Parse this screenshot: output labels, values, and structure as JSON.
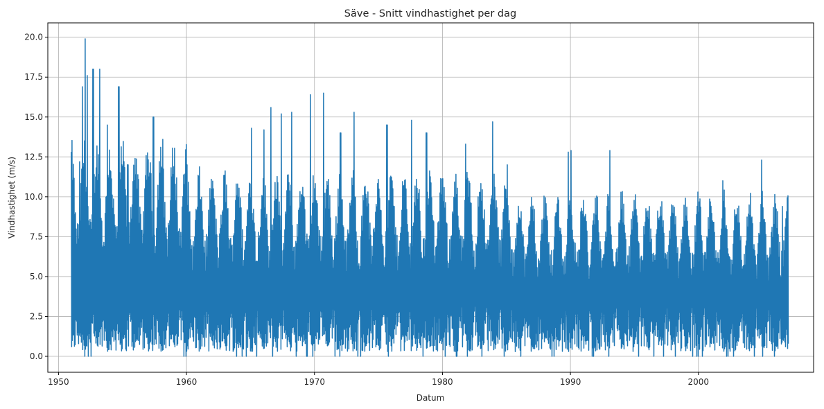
{
  "chart_data": {
    "type": "line",
    "title": "Säve - Snitt vindhastighet per dag",
    "xlabel": "Datum",
    "ylabel": "Vindhastighet (m/s)",
    "x_ticks": [
      "1950",
      "1960",
      "1970",
      "1980",
      "1990",
      "2000"
    ],
    "y_ticks": [
      "0.0",
      "2.5",
      "5.0",
      "7.5",
      "10.0",
      "12.5",
      "15.0",
      "17.5",
      "20.0"
    ],
    "xlim": [
      "1949-03-01",
      "2009-01-01"
    ],
    "ylim": [
      -1.0,
      20.9
    ],
    "grid": true,
    "legend": "none",
    "series": [
      {
        "color": "#1f77b4",
        "x_range": [
          "1951-01-01",
          "2006-12-31"
        ],
        "peaks": [
          {
            "x": "1951-05-01",
            "y": 9.0
          },
          {
            "x": "1951-09-01",
            "y": 12.2
          },
          {
            "x": "1951-11-15",
            "y": 16.9
          },
          {
            "x": "1952-02-01",
            "y": 19.9
          },
          {
            "x": "1952-04-01",
            "y": 17.6
          },
          {
            "x": "1952-09-15",
            "y": 18.0
          },
          {
            "x": "1953-03-15",
            "y": 18.0
          },
          {
            "x": "1953-11-01",
            "y": 14.5
          },
          {
            "x": "1954-09-15",
            "y": 16.9
          },
          {
            "x": "1955-06-01",
            "y": 12.0
          },
          {
            "x": "1957-06-01",
            "y": 15.0
          },
          {
            "x": "1958-03-01",
            "y": 13.6
          },
          {
            "x": "1960-01-15",
            "y": 12.0
          },
          {
            "x": "1962-02-01",
            "y": 10.5
          },
          {
            "x": "1963-11-15",
            "y": 10.8
          },
          {
            "x": "1965-02-01",
            "y": 14.3
          },
          {
            "x": "1966-01-15",
            "y": 14.2
          },
          {
            "x": "1966-08-01",
            "y": 15.6
          },
          {
            "x": "1967-06-01",
            "y": 15.2
          },
          {
            "x": "1968-03-15",
            "y": 15.3
          },
          {
            "x": "1969-09-15",
            "y": 16.4
          },
          {
            "x": "1970-09-15",
            "y": 16.5
          },
          {
            "x": "1972-01-15",
            "y": 14.0
          },
          {
            "x": "1973-02-01",
            "y": 15.3
          },
          {
            "x": "1975-09-01",
            "y": 14.5
          },
          {
            "x": "1977-08-01",
            "y": 14.8
          },
          {
            "x": "1978-10-01",
            "y": 14.0
          },
          {
            "x": "1981-11-01",
            "y": 13.3
          },
          {
            "x": "1983-12-01",
            "y": 14.7
          },
          {
            "x": "1985-02-01",
            "y": 12.0
          },
          {
            "x": "1989-11-01",
            "y": 12.8
          },
          {
            "x": "1990-01-15",
            "y": 12.9
          },
          {
            "x": "1993-02-01",
            "y": 12.9
          },
          {
            "x": "2001-12-01",
            "y": 11.0
          },
          {
            "x": "2004-12-15",
            "y": 12.3
          },
          {
            "x": "2006-08-01",
            "y": 9.4
          }
        ]
      }
    ]
  }
}
